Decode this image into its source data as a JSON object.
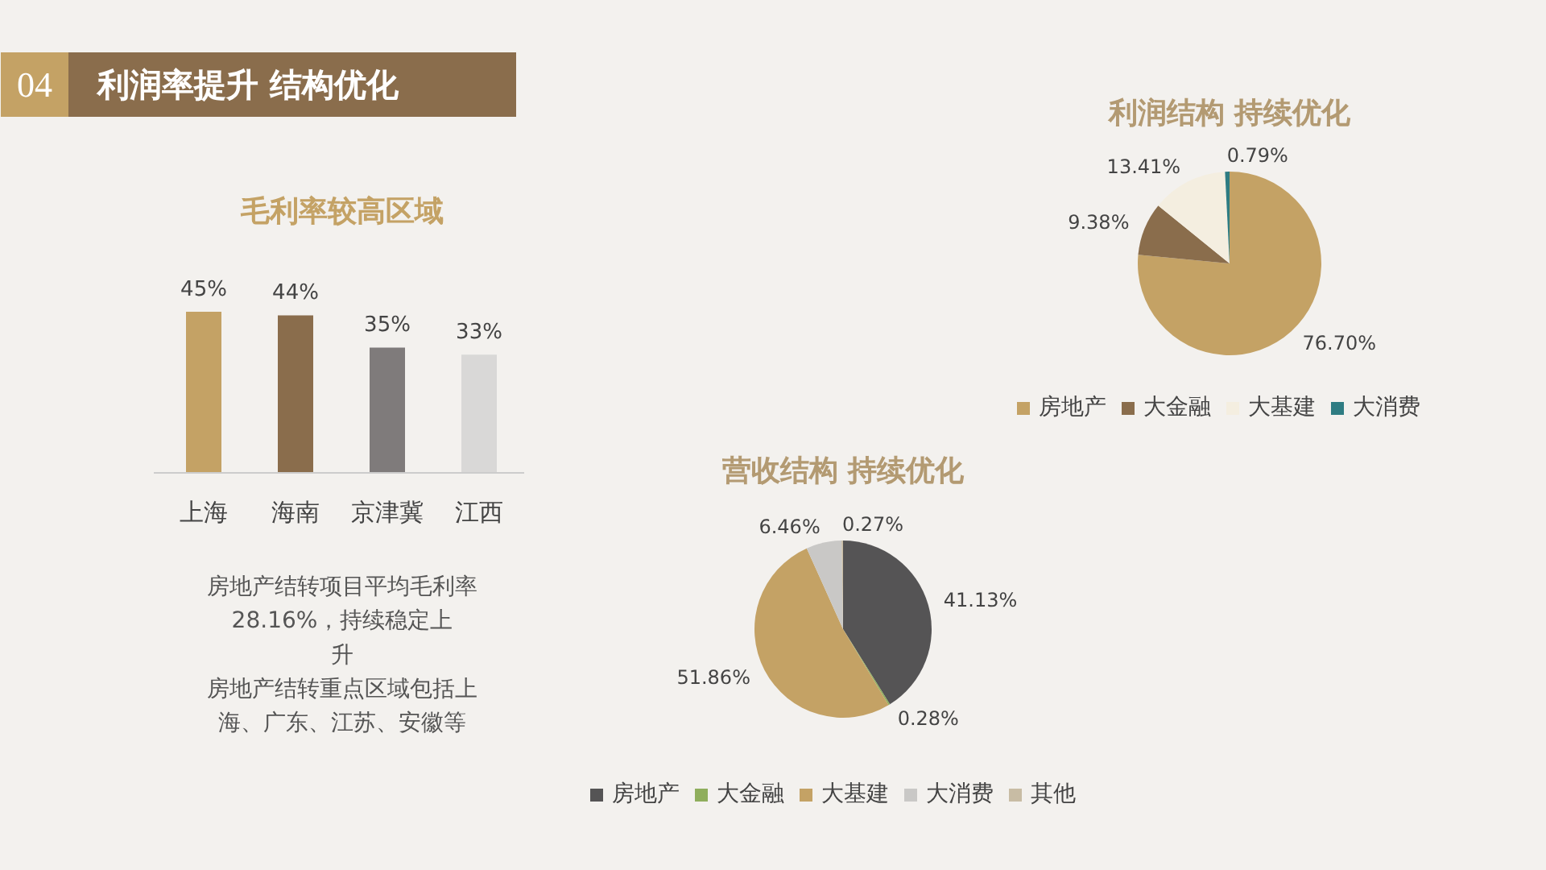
{
  "chart_data": [
    {
      "type": "other",
      "title": "利润率提升 结构优化",
      "annotations": [
        "04"
      ]
    },
    {
      "type": "bar",
      "title": "毛利率较高区域",
      "categories": [
        "上海",
        "海南",
        "京津冀",
        "江西"
      ],
      "values": [
        45,
        44,
        35,
        33
      ],
      "colors": [
        "#c4a265",
        "#8a6d4c",
        "#7f7b7b",
        "#d9d8d7"
      ],
      "value_labels": [
        "45%",
        "44%",
        "35%",
        "33%"
      ],
      "annotations": [
        "房地产结转项目平均毛利率28.16%，持续稳定上升",
        "房地产结转重点区域包括上海、广东、江苏、安徽等"
      ]
    },
    {
      "type": "pie",
      "title": "利润结构 持续优化",
      "categories": [
        "房地产",
        "大金融",
        "大基建",
        "大消费"
      ],
      "values": [
        76.7,
        9.38,
        13.41,
        0.79
      ],
      "colors": [
        "#c4a265",
        "#8a6d4c",
        "#f4eee0",
        "#2e7c82"
      ],
      "value_labels": [
        "76.70%",
        "9.38%",
        "13.41%",
        "0.79%"
      ],
      "legend": "bottom"
    },
    {
      "type": "pie",
      "title": "营收结构 持续优化",
      "categories": [
        "房地产",
        "大金融",
        "大基建",
        "大消费",
        "其他"
      ],
      "values": [
        41.13,
        0.28,
        51.86,
        6.46,
        0.27
      ],
      "colors": [
        "#555455",
        "#8fae5c",
        "#c4a265",
        "#c9c8c6",
        "#c8bca4"
      ],
      "value_labels": [
        "41.13%",
        "0.28%",
        "51.86%",
        "6.46%",
        "0.27%"
      ],
      "legend": "bottom"
    }
  ]
}
